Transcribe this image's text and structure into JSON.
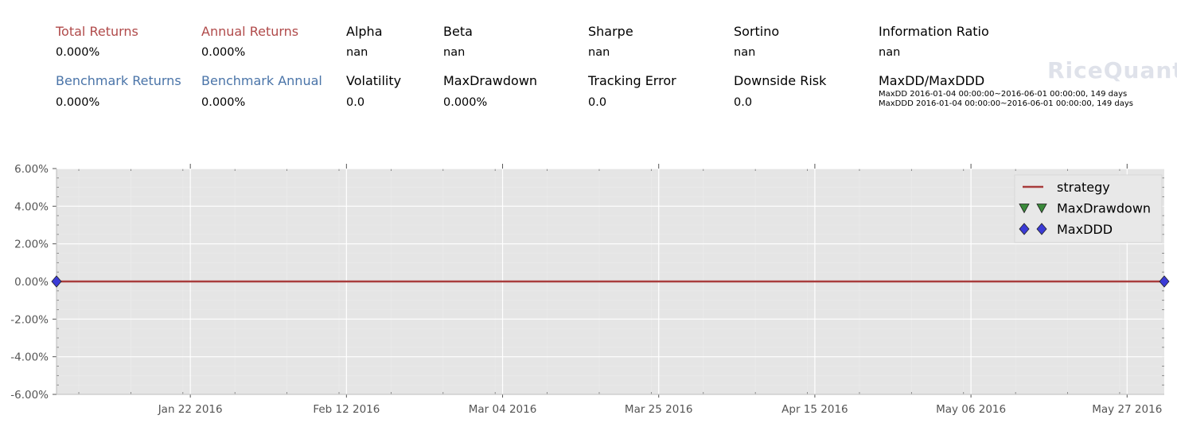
{
  "metrics": {
    "total_returns": {
      "label": "Total Returns",
      "value": "0.000%"
    },
    "annual_returns": {
      "label": "Annual Returns",
      "value": "0.000%"
    },
    "alpha": {
      "label": "Alpha",
      "value": "nan"
    },
    "beta": {
      "label": "Beta",
      "value": "nan"
    },
    "sharpe": {
      "label": "Sharpe",
      "value": "nan"
    },
    "sortino": {
      "label": "Sortino",
      "value": "nan"
    },
    "information_ratio": {
      "label": "Information Ratio",
      "value": "nan"
    },
    "benchmark_returns": {
      "label": "Benchmark Returns",
      "value": "0.000%"
    },
    "benchmark_annual": {
      "label": "Benchmark Annual",
      "value": "0.000%"
    },
    "volatility": {
      "label": "Volatility",
      "value": "0.0"
    },
    "max_drawdown": {
      "label": "MaxDrawdown",
      "value": "0.000%"
    },
    "tracking_error": {
      "label": "Tracking Error",
      "value": "0.0"
    },
    "downside_risk": {
      "label": "Downside Risk",
      "value": "0.0"
    },
    "maxdd_maxddd": {
      "label": "MaxDD/MaxDDD",
      "maxdd_note": "MaxDD  2016-01-04 00:00:00~2016-06-01 00:00:00, 149 days",
      "maxddd_note": "MaxDDD 2016-01-04 00:00:00~2016-06-01 00:00:00, 149 days"
    }
  },
  "logo_text": "RiceQuant",
  "colors": {
    "red_label": "#b04a4a",
    "blue_label": "#4a74a8",
    "strategy_line": "#a83c3c",
    "maxdrawdown_marker": "#3a8a3a",
    "maxddd_marker": "#3b3bd6",
    "plot_bg": "#e5e5e5"
  },
  "chart_data": {
    "type": "line",
    "x_start": "2016-01-04",
    "x_end": "2016-06-01",
    "xlim": [
      "2016-01-04",
      "2016-06-01"
    ],
    "ylim": [
      -0.06,
      0.06
    ],
    "yticks": [
      -0.06,
      -0.04,
      -0.02,
      0.0,
      0.02,
      0.04,
      0.06
    ],
    "ytick_labels": [
      "-6.00%",
      "-4.00%",
      "-2.00%",
      "0.00%",
      "2.00%",
      "4.00%",
      "6.00%"
    ],
    "xticks": [
      "2016-01-22",
      "2016-02-12",
      "2016-03-04",
      "2016-03-25",
      "2016-04-15",
      "2016-05-06",
      "2016-05-27"
    ],
    "xtick_labels": [
      "Jan 22 2016",
      "Feb 12 2016",
      "Mar 04 2016",
      "Mar 25 2016",
      "Apr 15 2016",
      "May 06 2016",
      "May 27 2016"
    ],
    "grid": true,
    "legend_position": "top-right",
    "series": [
      {
        "name": "strategy",
        "kind": "line",
        "x": [
          "2016-01-04",
          "2016-06-01"
        ],
        "y": [
          0.0,
          0.0
        ]
      },
      {
        "name": "MaxDrawdown",
        "kind": "marker",
        "marker": "triangle-down",
        "x": [],
        "y": []
      },
      {
        "name": "MaxDDD",
        "kind": "marker",
        "marker": "diamond",
        "x": [
          "2016-01-04",
          "2016-06-01"
        ],
        "y": [
          0.0,
          0.0
        ]
      }
    ]
  }
}
